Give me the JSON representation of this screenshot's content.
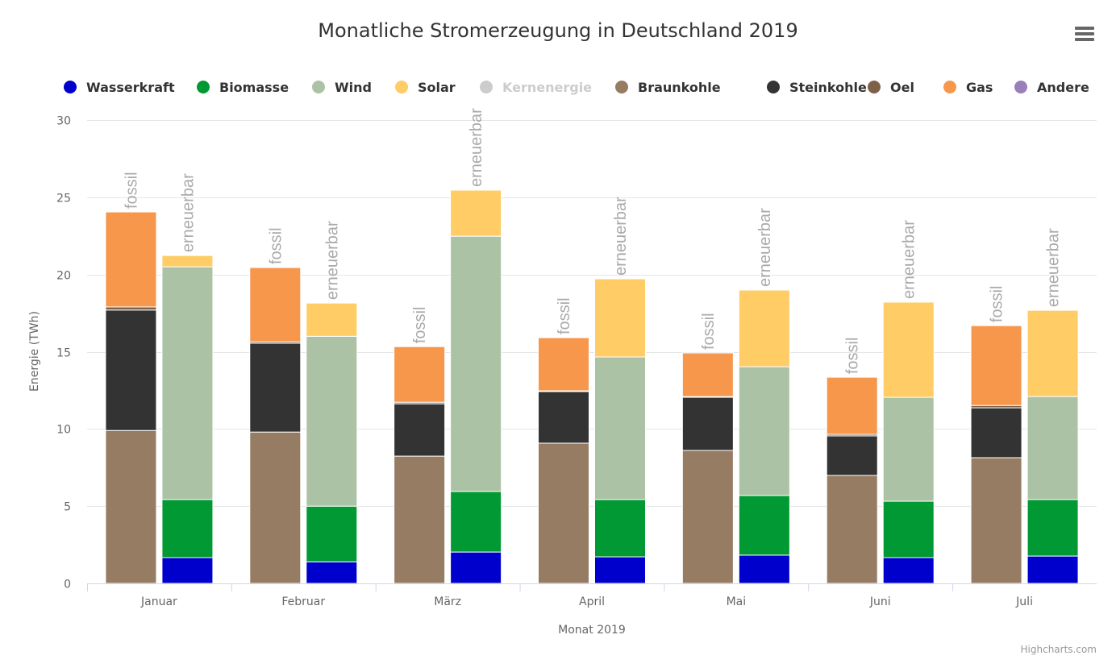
{
  "chart_data": {
    "type": "bar",
    "stacked": true,
    "title": "Monatliche Stromerzeugung in Deutschland 2019",
    "xlabel": "Monat 2019",
    "ylabel": "Energie (TWh)",
    "ylim": [
      0,
      30
    ],
    "yticks": [
      0,
      5,
      10,
      15,
      20,
      25,
      30
    ],
    "grid": true,
    "legend_position": "top",
    "categories": [
      "Januar",
      "Februar",
      "März",
      "April",
      "Mai",
      "Juni",
      "Juli"
    ],
    "stacks": [
      {
        "id": "fossil",
        "label": "fossil"
      },
      {
        "id": "erneuerbar",
        "label": "erneuerbar"
      }
    ],
    "series": [
      {
        "name": "Wasserkraft",
        "stack": "erneuerbar",
        "color": "#0000cc",
        "visible": true,
        "values": [
          1.67,
          1.4,
          2.03,
          1.72,
          1.83,
          1.67,
          1.77
        ]
      },
      {
        "name": "Biomasse",
        "stack": "erneuerbar",
        "color": "#009933",
        "visible": true,
        "values": [
          3.76,
          3.6,
          3.92,
          3.71,
          3.86,
          3.65,
          3.66
        ]
      },
      {
        "name": "Wind",
        "stack": "erneuerbar",
        "color": "#abc3a4",
        "visible": true,
        "values": [
          15.07,
          11.0,
          16.53,
          9.23,
          8.34,
          6.73,
          6.67
        ]
      },
      {
        "name": "Solar",
        "stack": "erneuerbar",
        "color": "#ffcc66",
        "visible": true,
        "values": [
          0.73,
          2.15,
          2.98,
          5.06,
          4.96,
          6.16,
          5.58
        ]
      },
      {
        "name": "Kernenergie",
        "stack": "fossil",
        "color": "#cccccc",
        "visible": false,
        "values": []
      },
      {
        "name": "Braunkohle",
        "stack": "fossil",
        "color": "#967c63",
        "visible": true,
        "values": [
          9.9,
          9.8,
          8.24,
          9.08,
          8.61,
          6.99,
          8.14
        ]
      },
      {
        "name": "Steinkohle",
        "stack": "fossil",
        "color": "#333333",
        "visible": true,
        "values": [
          7.8,
          5.75,
          3.39,
          3.34,
          3.44,
          2.56,
          3.23
        ]
      },
      {
        "name": "Oel",
        "stack": "fossil",
        "color": "#7f6148",
        "visible": true,
        "values": [
          0.2,
          0.1,
          0.1,
          0.05,
          0.05,
          0.1,
          0.15
        ]
      },
      {
        "name": "Gas",
        "stack": "fossil",
        "color": "#f7974c",
        "visible": true,
        "values": [
          6.15,
          4.8,
          3.6,
          3.44,
          2.82,
          3.7,
          5.17
        ]
      },
      {
        "name": "Andere",
        "stack": "fossil",
        "color": "#9980b8",
        "visible": true,
        "values": [
          0,
          0,
          0,
          0,
          0,
          0,
          0
        ]
      }
    ]
  },
  "ui": {
    "menu_icon": "hamburger-menu-icon",
    "credits": "Highcharts.com"
  }
}
